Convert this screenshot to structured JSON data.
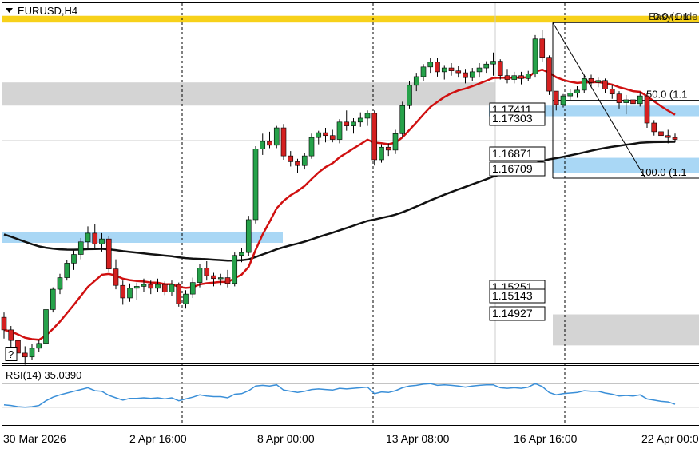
{
  "window": {
    "symbol_title": "EURUSD,H4",
    "help_label": "?"
  },
  "chart_data": {
    "type": "candlestick",
    "symbol": "EURUSD",
    "timeframe": "H4",
    "x_ticks": [
      "30 Mar 2026",
      "2 Apr 16:00",
      "8 Apr 00:00",
      "13 Apr 08:00",
      "16 Apr 16:00",
      "22 Apr 00:00"
    ],
    "ylim": [
      1.1475,
      1.1847
    ],
    "price_labels": [
      "1.17411",
      "1.17303",
      "1.16871",
      "1.16709",
      "1.15251",
      "1.15143",
      "1.14927"
    ],
    "fibonacci": {
      "levels": [
        {
          "level": "0.0",
          "label": "0.0 (1.1"
        },
        {
          "level": "50.0",
          "label": "50.0 (1.1"
        },
        {
          "level": "100.0",
          "label": "100.0 (1.1"
        }
      ],
      "overlay_text": "Easy Orde"
    },
    "zones": [
      {
        "color": "#f7d11a",
        "from": 1.1827,
        "to": 1.1834
      },
      {
        "color": "#d4d4d4",
        "from": 1.1741,
        "to": 1.1765
      },
      {
        "color": "#a9d7f5",
        "from": 1.173,
        "to": 1.1741
      },
      {
        "color": "#a9d7f5",
        "from": 1.1671,
        "to": 1.1687
      },
      {
        "color": "#a9d7f5",
        "from": 1.1599,
        "to": 1.161
      },
      {
        "color": "#d4d4d4",
        "from": 1.1493,
        "to": 1.1525
      }
    ],
    "ema_fast_color": "#d01010",
    "ema_slow_color": "#111111",
    "bull_color": "#26a24a",
    "bear_color": "#d42020",
    "candles": [
      [
        1.1522,
        1.1527,
        1.15,
        1.1509
      ],
      [
        1.1509,
        1.1513,
        1.1488,
        1.1498
      ],
      [
        1.1498,
        1.1503,
        1.148,
        1.1485
      ],
      [
        1.1485,
        1.1492,
        1.1473,
        1.1481
      ],
      [
        1.1481,
        1.1494,
        1.1478,
        1.149
      ],
      [
        1.149,
        1.1499,
        1.1486,
        1.1495
      ],
      [
        1.1495,
        1.1534,
        1.1492,
        1.153
      ],
      [
        1.153,
        1.1553,
        1.1527,
        1.1551
      ],
      [
        1.1551,
        1.1567,
        1.1546,
        1.1563
      ],
      [
        1.1563,
        1.1581,
        1.156,
        1.1578
      ],
      [
        1.1578,
        1.1591,
        1.1571,
        1.1587
      ],
      [
        1.1587,
        1.1604,
        1.1582,
        1.16
      ],
      [
        1.16,
        1.1616,
        1.1594,
        1.1609
      ],
      [
        1.1609,
        1.1618,
        1.1593,
        1.1598
      ],
      [
        1.1598,
        1.1609,
        1.159,
        1.1603
      ],
      [
        1.1603,
        1.1606,
        1.1569,
        1.1572
      ],
      [
        1.1572,
        1.1582,
        1.1551,
        1.1555
      ],
      [
        1.1555,
        1.156,
        1.1535,
        1.1542
      ],
      [
        1.1542,
        1.1557,
        1.1538,
        1.1552
      ],
      [
        1.1552,
        1.1558,
        1.154,
        1.1554
      ],
      [
        1.1554,
        1.1562,
        1.1548,
        1.1556
      ],
      [
        1.1556,
        1.156,
        1.1546,
        1.1552
      ],
      [
        1.1552,
        1.1562,
        1.1548,
        1.1556
      ],
      [
        1.1556,
        1.1559,
        1.1545,
        1.1548
      ],
      [
        1.1548,
        1.156,
        1.1544,
        1.1556
      ],
      [
        1.1556,
        1.1558,
        1.1533,
        1.1536
      ],
      [
        1.1536,
        1.155,
        1.1531,
        1.1546
      ],
      [
        1.1546,
        1.1563,
        1.1542,
        1.1558
      ],
      [
        1.1558,
        1.1577,
        1.1553,
        1.1573
      ],
      [
        1.1573,
        1.158,
        1.156,
        1.1565
      ],
      [
        1.1565,
        1.1568,
        1.1554,
        1.1562
      ],
      [
        1.1562,
        1.1567,
        1.1555,
        1.1563
      ],
      [
        1.1563,
        1.1571,
        1.1553,
        1.1557
      ],
      [
        1.1557,
        1.1589,
        1.1554,
        1.1586
      ],
      [
        1.1586,
        1.1594,
        1.1579,
        1.1589
      ],
      [
        1.1589,
        1.1627,
        1.1585,
        1.1623
      ],
      [
        1.1623,
        1.1699,
        1.1619,
        1.1696
      ],
      [
        1.1696,
        1.1712,
        1.169,
        1.1704
      ],
      [
        1.1704,
        1.1714,
        1.1697,
        1.17
      ],
      [
        1.17,
        1.172,
        1.1697,
        1.1718
      ],
      [
        1.1718,
        1.1722,
        1.1685,
        1.1689
      ],
      [
        1.1689,
        1.1694,
        1.1678,
        1.1683
      ],
      [
        1.1683,
        1.1686,
        1.1671,
        1.1679
      ],
      [
        1.1679,
        1.1692,
        1.1675,
        1.1689
      ],
      [
        1.1689,
        1.1712,
        1.1686,
        1.1708
      ],
      [
        1.1708,
        1.1715,
        1.1701,
        1.1713
      ],
      [
        1.1713,
        1.1718,
        1.1703,
        1.171
      ],
      [
        1.171,
        1.1716,
        1.1703,
        1.1706
      ],
      [
        1.1706,
        1.1727,
        1.1702,
        1.1724
      ],
      [
        1.1724,
        1.1736,
        1.1715,
        1.172
      ],
      [
        1.172,
        1.1728,
        1.1712,
        1.1724
      ],
      [
        1.1724,
        1.1734,
        1.1719,
        1.1728
      ],
      [
        1.1728,
        1.1736,
        1.172,
        1.1733
      ],
      [
        1.1733,
        1.1736,
        1.1679,
        1.1685
      ],
      [
        1.1685,
        1.1701,
        1.1682,
        1.1698
      ],
      [
        1.1698,
        1.1702,
        1.1689,
        1.1695
      ],
      [
        1.1695,
        1.1716,
        1.1691,
        1.1712
      ],
      [
        1.1712,
        1.1745,
        1.1708,
        1.1741
      ],
      [
        1.1741,
        1.1766,
        1.1738,
        1.1762
      ],
      [
        1.1762,
        1.1775,
        1.1756,
        1.1771
      ],
      [
        1.1771,
        1.1784,
        1.1766,
        1.1781
      ],
      [
        1.1781,
        1.179,
        1.1775,
        1.1786
      ],
      [
        1.1786,
        1.179,
        1.1771,
        1.1776
      ],
      [
        1.1776,
        1.1783,
        1.1768,
        1.178
      ],
      [
        1.178,
        1.1785,
        1.1772,
        1.1777
      ],
      [
        1.1777,
        1.1782,
        1.177,
        1.1775
      ],
      [
        1.1775,
        1.1779,
        1.1764,
        1.177
      ],
      [
        1.177,
        1.178,
        1.1766,
        1.1776
      ],
      [
        1.1776,
        1.1785,
        1.177,
        1.178
      ],
      [
        1.178,
        1.1787,
        1.1775,
        1.1784
      ],
      [
        1.1784,
        1.1796,
        1.1772,
        1.1787
      ],
      [
        1.1787,
        1.1789,
        1.1768,
        1.1772
      ],
      [
        1.1772,
        1.1779,
        1.1764,
        1.1768
      ],
      [
        1.1768,
        1.1776,
        1.1764,
        1.1772
      ],
      [
        1.1772,
        1.1776,
        1.1763,
        1.1769
      ],
      [
        1.1769,
        1.1777,
        1.1766,
        1.1774
      ],
      [
        1.1774,
        1.1814,
        1.177,
        1.181
      ],
      [
        1.181,
        1.1819,
        1.1786,
        1.1791
      ],
      [
        1.1791,
        1.1793,
        1.1752,
        1.1756
      ],
      [
        1.1756,
        1.1756,
        1.1736,
        1.1742
      ],
      [
        1.1742,
        1.1753,
        1.1739,
        1.1751
      ],
      [
        1.1751,
        1.1758,
        1.1747,
        1.1754
      ],
      [
        1.1754,
        1.1761,
        1.1749,
        1.1757
      ],
      [
        1.1757,
        1.1773,
        1.1754,
        1.1769
      ],
      [
        1.1769,
        1.1773,
        1.176,
        1.1765
      ],
      [
        1.1765,
        1.177,
        1.176,
        1.1767
      ],
      [
        1.1767,
        1.1769,
        1.1754,
        1.1758
      ],
      [
        1.1758,
        1.1762,
        1.1748,
        1.1753
      ],
      [
        1.1753,
        1.1756,
        1.1738,
        1.1744
      ],
      [
        1.1744,
        1.1752,
        1.1732,
        1.1747
      ],
      [
        1.1747,
        1.1752,
        1.1739,
        1.1743
      ],
      [
        1.1743,
        1.1755,
        1.174,
        1.1751
      ],
      [
        1.1751,
        1.1754,
        1.1718,
        1.1723
      ],
      [
        1.1723,
        1.1726,
        1.171,
        1.1714
      ],
      [
        1.1714,
        1.1718,
        1.1703,
        1.171
      ],
      [
        1.171,
        1.1716,
        1.1702,
        1.1708
      ],
      [
        1.1708,
        1.1712,
        1.1703,
        1.1706
      ]
    ],
    "rsi": {
      "label": "RSI(14) 35.0390",
      "levels": [
        30,
        70
      ],
      "values": [
        34,
        33,
        31,
        30,
        31,
        33,
        41,
        47,
        51,
        54,
        57,
        60,
        63,
        58,
        57,
        50,
        46,
        42,
        45,
        45,
        46,
        45,
        46,
        44,
        46,
        41,
        44,
        47,
        51,
        49,
        48,
        48,
        46,
        52,
        53,
        58,
        66,
        67,
        66,
        68,
        59,
        57,
        55,
        57,
        60,
        61,
        60,
        59,
        62,
        61,
        62,
        63,
        64,
        53,
        56,
        55,
        58,
        63,
        66,
        67,
        69,
        70,
        67,
        68,
        67,
        66,
        64,
        66,
        67,
        68,
        68,
        63,
        62,
        63,
        62,
        64,
        70,
        65,
        55,
        51,
        53,
        54,
        55,
        58,
        57,
        57,
        54,
        52,
        49,
        50,
        49,
        51,
        44,
        42,
        40,
        39,
        35
      ]
    }
  }
}
